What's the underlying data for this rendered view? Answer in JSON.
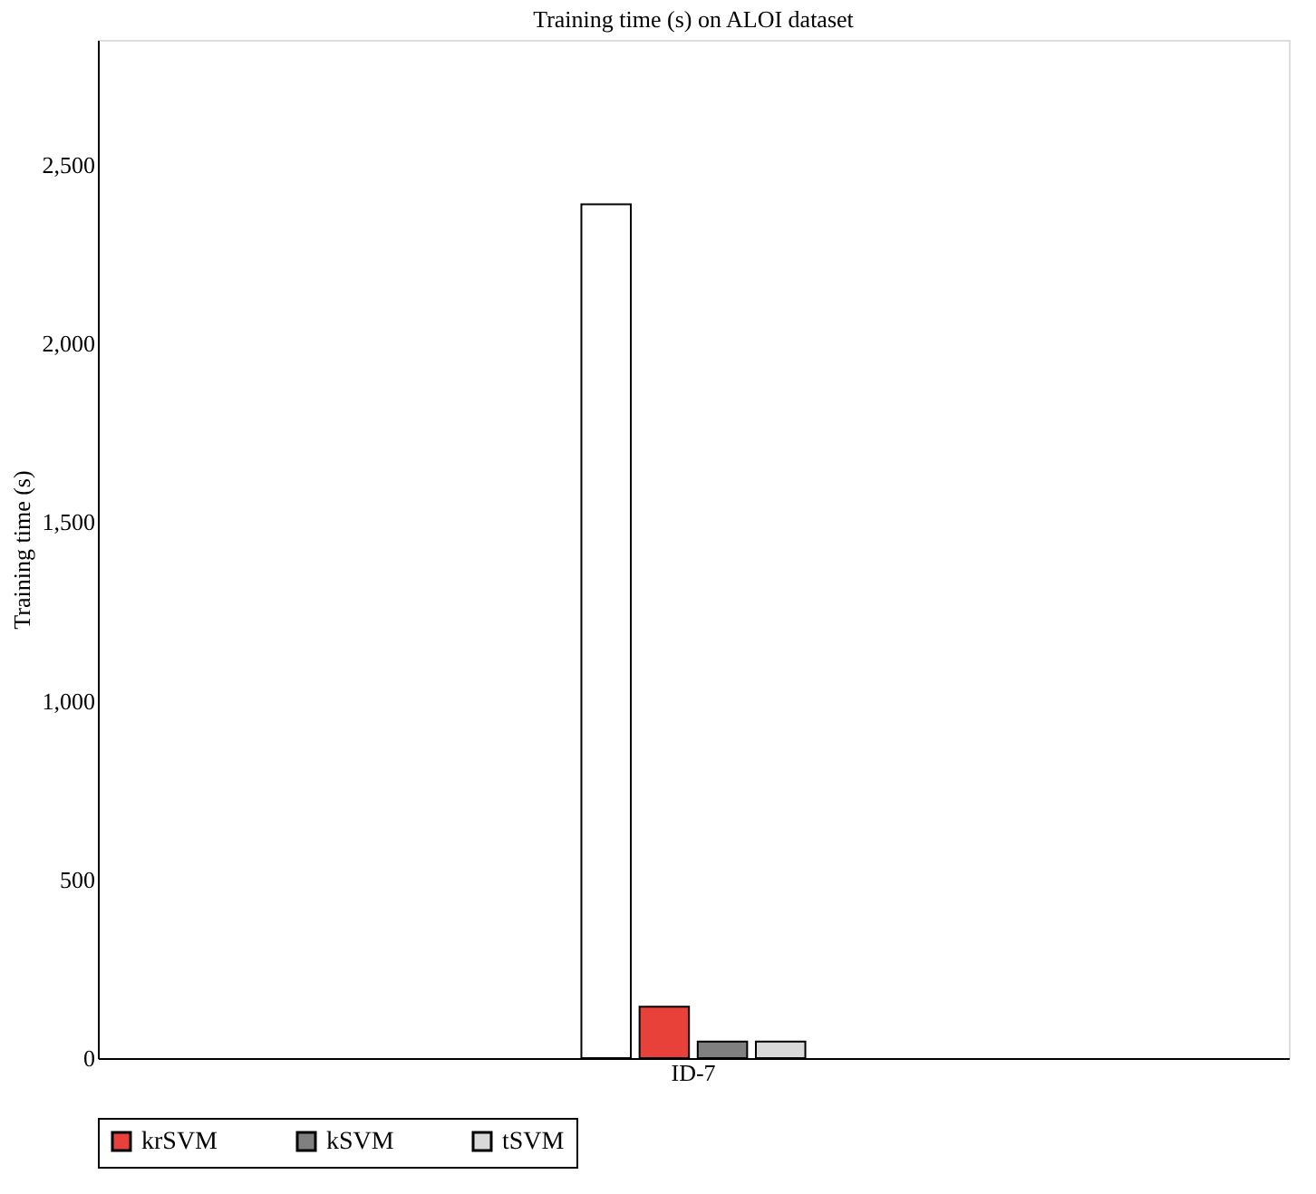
{
  "chart_data": {
    "type": "bar",
    "title": "Training time (s) on ALOI dataset",
    "ylabel": "Training time (s)",
    "categories": [
      "ID-7"
    ],
    "series": [
      {
        "color": "#ffffff",
        "values": [
          2390
        ]
      },
      {
        "name": "krSVM",
        "color": "#e8413a",
        "values": [
          144
        ]
      },
      {
        "name": "kSVM",
        "color": "#808080",
        "values": [
          46
        ]
      },
      {
        "name": "tSVM",
        "color": "#d9d9d9",
        "values": [
          46
        ]
      }
    ],
    "ylim": [
      0,
      2850
    ],
    "yticks": [
      {
        "value": 0,
        "label": "0"
      },
      {
        "value": 500,
        "label": "500"
      },
      {
        "value": 1000,
        "label": "1,000"
      },
      {
        "value": 1500,
        "label": "1,500"
      },
      {
        "value": 2000,
        "label": "2,000"
      },
      {
        "value": 2500,
        "label": "2,500"
      }
    ],
    "grid": false,
    "legend": "bottom"
  }
}
